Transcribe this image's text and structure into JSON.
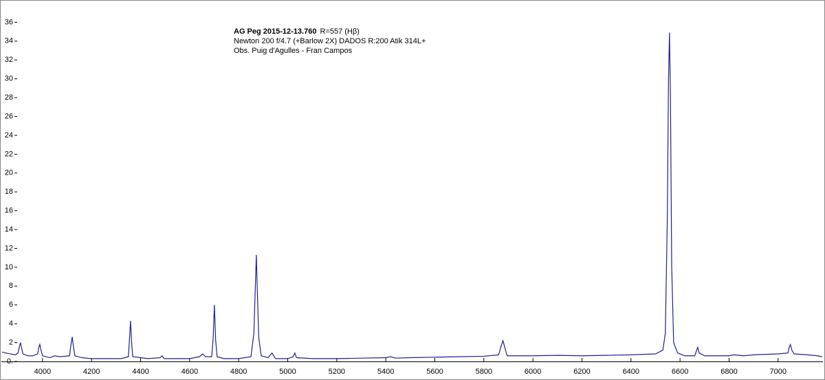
{
  "chart_data": {
    "type": "line",
    "title": "AG Peg 2015-12-13.760",
    "annotations": [
      "R=557 (Hβ)",
      "Newton 200 f/4.7 (+Barlow 2X) DADOS R:200 Atik 314L+",
      "Obs. Puig d'Agulles - Fran Campos"
    ],
    "xlim": [
      3835,
      7180
    ],
    "ylim": [
      0,
      38
    ],
    "xticks": [
      4000,
      4200,
      4400,
      4600,
      4800,
      5000,
      5200,
      5400,
      5600,
      5800,
      6000,
      6200,
      6400,
      6600,
      6800,
      7000
    ],
    "yticks": [
      {
        "value": 0,
        "label": "0."
      },
      2,
      4,
      6,
      8,
      10,
      12,
      14,
      16,
      18,
      20,
      22,
      24,
      26,
      28,
      30,
      32,
      34,
      36
    ],
    "x": [
      3835,
      3850,
      3870,
      3890,
      3900,
      3906,
      3910,
      3914,
      3920,
      3940,
      3960,
      3980,
      3985,
      3989,
      3993,
      4000,
      4030,
      4050,
      4070,
      4110,
      4116,
      4121,
      4126,
      4132,
      4160,
      4200,
      4240,
      4280,
      4320,
      4350,
      4355,
      4359,
      4363,
      4368,
      4400,
      4430,
      4480,
      4488,
      4496,
      4540,
      4600,
      4640,
      4653,
      4665,
      4690,
      4696,
      4701,
      4706,
      4712,
      4740,
      4800,
      4850,
      4862,
      4868,
      4872,
      4876,
      4882,
      4892,
      4920,
      4936,
      4950,
      5000,
      5022,
      5029,
      5036,
      5100,
      5200,
      5300,
      5400,
      5419,
      5440,
      5500,
      5600,
      5700,
      5800,
      5860,
      5870,
      5878,
      5886,
      5895,
      5950,
      6000,
      6100,
      6200,
      6300,
      6400,
      6500,
      6530,
      6540,
      6548,
      6553,
      6557,
      6561,
      6566,
      6574,
      6590,
      6620,
      6660,
      6668,
      6672,
      6678,
      6700,
      6800,
      6820,
      6860,
      6900,
      7000,
      7040,
      7045,
      7050,
      7056,
      7065,
      7120,
      7160,
      7180
    ],
    "series": [
      {
        "color": "#1f1f8f",
        "values": [
          1.0,
          0.9,
          0.8,
          0.7,
          0.9,
          1.6,
          2.0,
          1.5,
          0.8,
          0.6,
          0.6,
          0.8,
          1.5,
          1.8,
          1.3,
          0.6,
          0.4,
          0.6,
          0.5,
          0.6,
          1.8,
          2.6,
          1.6,
          0.6,
          0.4,
          0.3,
          0.3,
          0.3,
          0.3,
          0.5,
          2.5,
          4.3,
          2.2,
          0.5,
          0.4,
          0.3,
          0.4,
          0.6,
          0.3,
          0.3,
          0.3,
          0.5,
          0.8,
          0.5,
          0.5,
          2.5,
          6.0,
          2.3,
          0.5,
          0.3,
          0.3,
          0.5,
          3.0,
          8.0,
          11.3,
          7.5,
          2.5,
          0.6,
          0.4,
          0.9,
          0.3,
          0.3,
          0.5,
          0.9,
          0.4,
          0.3,
          0.3,
          0.35,
          0.4,
          0.5,
          0.35,
          0.4,
          0.45,
          0.5,
          0.55,
          0.7,
          1.6,
          2.2,
          1.4,
          0.6,
          0.6,
          0.6,
          0.65,
          0.6,
          0.65,
          0.7,
          0.8,
          1.2,
          3.0,
          15.0,
          30.0,
          34.9,
          28.0,
          10.0,
          2.0,
          0.9,
          0.6,
          0.6,
          1.2,
          1.5,
          0.9,
          0.6,
          0.6,
          0.7,
          0.6,
          0.7,
          0.8,
          0.9,
          1.5,
          1.8,
          1.2,
          0.8,
          0.7,
          0.6,
          0.5
        ]
      }
    ]
  }
}
